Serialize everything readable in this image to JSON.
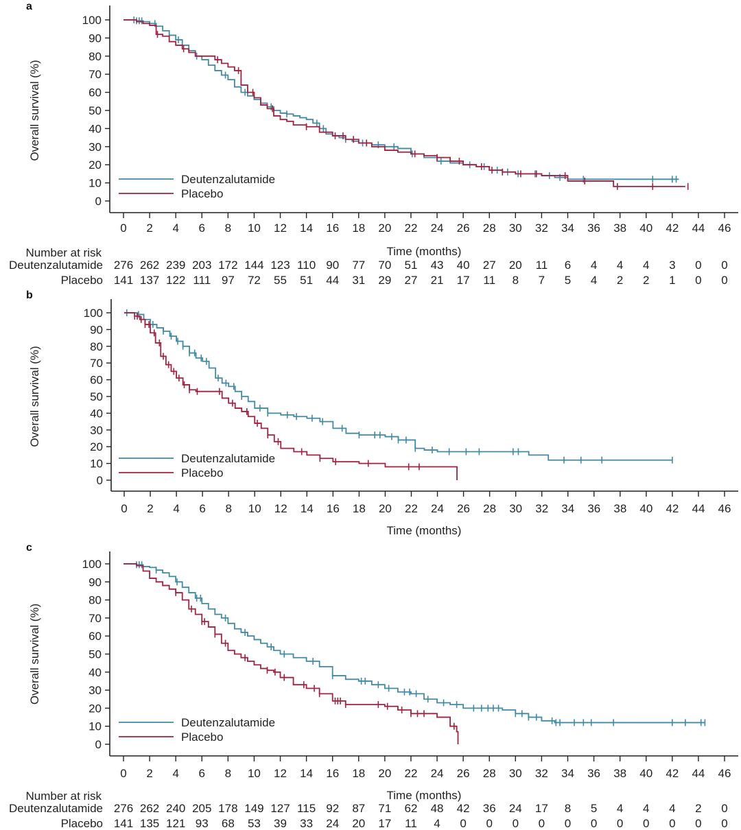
{
  "colors": {
    "treatment": "#3f8aa6",
    "placebo": "#a3213f",
    "axis": "#222222"
  },
  "chart_data": [
    {
      "type": "line",
      "panel": "a",
      "xlabel": "Time (months)",
      "ylabel": "Overall survival (%)",
      "xlim": [
        0,
        46
      ],
      "ylim": [
        0,
        100
      ],
      "xticks": [
        0,
        2,
        4,
        6,
        8,
        10,
        12,
        14,
        16,
        18,
        20,
        22,
        24,
        26,
        28,
        30,
        32,
        34,
        36,
        38,
        40,
        42,
        44,
        46
      ],
      "yticks": [
        0,
        10,
        20,
        30,
        40,
        50,
        60,
        70,
        80,
        90,
        100
      ],
      "legend": [
        "Deutenzalutamide",
        "Placebo"
      ],
      "legend_position": "bottom-left",
      "series": [
        {
          "name": "Deutenzalutamide",
          "color_key": "treatment",
          "x": [
            0,
            1,
            1.5,
            2,
            2.5,
            3,
            3.5,
            4,
            4.5,
            5,
            5.5,
            6,
            6.5,
            7,
            7.5,
            8,
            8.5,
            9,
            9.5,
            10,
            10.5,
            11,
            11.5,
            12,
            12.5,
            13,
            13.5,
            14,
            14.5,
            15,
            15.5,
            16,
            16.5,
            17,
            17.5,
            18,
            19,
            20,
            21,
            22,
            23,
            24,
            25,
            26,
            27,
            28,
            29,
            30,
            31,
            32,
            33,
            34,
            35,
            36,
            38,
            40,
            42,
            42.5
          ],
          "y": [
            100,
            99.5,
            99,
            98,
            96.5,
            94,
            91.5,
            89,
            86,
            83,
            80,
            78,
            75,
            72,
            69.5,
            67,
            63,
            60,
            58,
            56,
            54,
            52,
            50,
            48.5,
            48,
            47,
            46,
            45,
            43,
            40,
            37,
            36,
            35,
            34,
            33,
            32,
            31,
            30,
            29,
            26,
            24,
            22,
            21,
            20,
            19,
            17,
            16,
            15,
            15,
            14,
            13,
            12,
            12,
            12,
            12,
            12,
            12,
            12
          ],
          "censor_x": [
            0.8,
            1.0,
            1.2,
            1.4,
            2.4,
            4.2,
            5.6,
            7.8,
            9.3,
            11.3,
            12.5,
            14.8,
            15.3,
            17.0,
            18.3,
            19.5,
            20.7,
            22.1,
            24.3,
            26.5,
            27.6,
            28.6,
            29.4,
            30.2,
            31.5,
            32.6,
            33.4,
            35.2,
            40.5,
            42.0,
            42.3
          ]
        },
        {
          "name": "Placebo",
          "color_key": "placebo",
          "x": [
            0,
            1,
            1.5,
            2,
            2.5,
            3,
            3.5,
            4,
            4.5,
            5,
            5.5,
            6,
            6.5,
            7,
            7.5,
            8,
            8.5,
            9,
            9.5,
            10,
            10.5,
            11,
            11.5,
            12,
            12.5,
            13,
            14,
            15,
            16,
            17,
            18,
            19,
            20,
            21,
            22,
            23,
            24,
            25,
            26,
            27,
            28,
            29,
            30,
            31,
            32,
            33,
            34,
            36,
            37.5,
            40,
            43
          ],
          "y": [
            100,
            99,
            98,
            97,
            92,
            91,
            88,
            86,
            84,
            82,
            80,
            80,
            80,
            78,
            76,
            74,
            72,
            64,
            60,
            57,
            53,
            51,
            47,
            45,
            44,
            42,
            41,
            38,
            36,
            34,
            32,
            30,
            28,
            27,
            26,
            25,
            24,
            22,
            20,
            19,
            17,
            16,
            15,
            15,
            14,
            14,
            11,
            11,
            8,
            8,
            8
          ],
          "censor_x": [
            2.6,
            4.6,
            7.2,
            8.8,
            9.9,
            11.4,
            14.0,
            16.2,
            16.8,
            17.6,
            18.6,
            22.3,
            24.0,
            25.7,
            27.4,
            28.2,
            29.0,
            30.4,
            31.6,
            33.8,
            35.3,
            37.8,
            40.5,
            43.2
          ]
        }
      ],
      "number_at_risk": {
        "title": "Number at risk",
        "times": [
          0,
          2,
          4,
          6,
          8,
          10,
          12,
          14,
          16,
          18,
          20,
          22,
          24,
          26,
          28,
          30,
          32,
          34,
          36,
          38,
          40,
          42,
          44,
          46
        ],
        "rows": [
          {
            "label": "Deutenzalutamide",
            "values": [
              276,
              262,
              239,
              203,
              172,
              144,
              123,
              110,
              90,
              77,
              70,
              51,
              43,
              40,
              27,
              20,
              11,
              6,
              4,
              4,
              4,
              3,
              0,
              0
            ]
          },
          {
            "label": "Placebo",
            "values": [
              141,
              137,
              122,
              111,
              97,
              72,
              55,
              51,
              44,
              31,
              29,
              27,
              21,
              17,
              11,
              8,
              7,
              5,
              4,
              2,
              2,
              1,
              0,
              0
            ]
          }
        ]
      }
    },
    {
      "type": "line",
      "panel": "b",
      "xlabel": "Time (months)",
      "ylabel": "Overall survival (%)",
      "xlim": [
        0,
        46
      ],
      "ylim": [
        0,
        100
      ],
      "xticks": [
        0,
        2,
        4,
        6,
        8,
        10,
        12,
        14,
        16,
        18,
        20,
        22,
        24,
        26,
        28,
        30,
        32,
        34,
        36,
        38,
        40,
        42,
        44,
        46
      ],
      "yticks": [
        0,
        10,
        20,
        30,
        40,
        50,
        60,
        70,
        80,
        90,
        100
      ],
      "legend": [
        "Deutenzalutamide",
        "Placebo"
      ],
      "legend_position": "bottom-left",
      "series": [
        {
          "name": "Deutenzalutamide",
          "color_key": "treatment",
          "x": [
            0,
            1,
            1.5,
            2,
            2.5,
            3,
            3.5,
            4,
            4.5,
            5,
            5.5,
            6,
            6.5,
            7,
            7.5,
            8,
            8.5,
            9,
            9.5,
            10,
            11,
            12,
            13,
            14,
            15,
            16,
            17,
            18,
            19,
            20,
            21,
            22,
            22.3,
            23,
            24,
            30,
            31,
            32.5,
            34,
            42
          ],
          "y": [
            100,
            99,
            96,
            93,
            91,
            89,
            86,
            83,
            80,
            76,
            73,
            71,
            67,
            61,
            58,
            56,
            53,
            50,
            47,
            43,
            40,
            39,
            38,
            37,
            35,
            31,
            28,
            27,
            27,
            26,
            24,
            24,
            19,
            18,
            17,
            17,
            15,
            12,
            12,
            12
          ],
          "censor_x": [
            0.2,
            1.1,
            2.2,
            3.0,
            3.6,
            4.1,
            4.5,
            5.0,
            5.4,
            5.9,
            6.3,
            7.2,
            7.8,
            8.4,
            9.0,
            10.4,
            11.0,
            12.5,
            13.2,
            14.4,
            15.2,
            16.7,
            18.0,
            19.2,
            19.6,
            20.5,
            21.0,
            21.6,
            22.3,
            23.6,
            24.9,
            26.2,
            27.2,
            29.8,
            30.2,
            33.7,
            35.0,
            36.6,
            42.0
          ],
          "last_x": 42
        },
        {
          "name": "Placebo",
          "color_key": "placebo",
          "x": [
            0,
            0.8,
            1.2,
            1.6,
            2,
            2.4,
            2.8,
            3.2,
            3.6,
            4,
            4.5,
            5,
            5.5,
            6,
            7,
            7.5,
            8,
            8.5,
            9,
            9.5,
            10,
            10.5,
            11,
            11.5,
            12,
            13,
            14,
            15,
            16,
            18,
            20,
            22,
            23,
            25.5
          ],
          "y": [
            100,
            98,
            96,
            93,
            88,
            82,
            74,
            69,
            65,
            61,
            57,
            54,
            53,
            53,
            53,
            49,
            46,
            43,
            41,
            38,
            34,
            31,
            27,
            23,
            19,
            17,
            15,
            13,
            11,
            10,
            8,
            8,
            8,
            8
          ],
          "censor_x": [
            0.8,
            1.0,
            1.3,
            1.6,
            1.9,
            2.3,
            2.7,
            3.0,
            3.4,
            3.8,
            4.2,
            4.6,
            5.0,
            5.6,
            7.3,
            8.3,
            9.4,
            10.2,
            11.0,
            11.8,
            13.6,
            15.0,
            16.2,
            18.7,
            21.8,
            22.6
          ],
          "last_x": 25.5,
          "drop_to": 0
        }
      ]
    },
    {
      "type": "line",
      "panel": "c",
      "xlabel": "Time (months)",
      "ylabel": "Overall survival (%)",
      "xlim": [
        0,
        46
      ],
      "ylim": [
        0,
        100
      ],
      "xticks": [
        0,
        2,
        4,
        6,
        8,
        10,
        12,
        14,
        16,
        18,
        20,
        22,
        24,
        26,
        28,
        30,
        32,
        34,
        36,
        38,
        40,
        42,
        44,
        46
      ],
      "yticks": [
        0,
        10,
        20,
        30,
        40,
        50,
        60,
        70,
        80,
        90,
        100
      ],
      "legend": [
        "Deutenzalutamide",
        "Placebo"
      ],
      "legend_position": "bottom-left",
      "series": [
        {
          "name": "Deutenzalutamide",
          "color_key": "treatment",
          "x": [
            0,
            1,
            1.5,
            2,
            2.5,
            3,
            3.5,
            4,
            4.5,
            5,
            5.5,
            6,
            6.5,
            7,
            7.5,
            8,
            8.5,
            9,
            9.5,
            10,
            10.5,
            11,
            11.5,
            12,
            13,
            14,
            15,
            16,
            17,
            18,
            19,
            20,
            21,
            22,
            23,
            24,
            25,
            26,
            27,
            28,
            29,
            30,
            31,
            32,
            33,
            34,
            36,
            40,
            44.5
          ],
          "y": [
            100,
            99.5,
            98.5,
            98,
            96.5,
            95,
            93,
            90,
            87,
            84,
            81,
            78,
            75,
            72,
            70,
            67,
            64,
            62,
            60,
            58,
            56,
            54,
            52,
            50,
            48,
            46,
            43,
            38,
            36,
            35,
            33,
            31,
            29,
            28,
            25,
            23,
            22,
            20,
            20,
            20,
            19,
            17,
            15,
            13,
            12,
            12,
            12,
            12,
            12
          ],
          "censor_x": [
            1.0,
            1.2,
            1.4,
            2.5,
            4.1,
            5.6,
            5.9,
            7.8,
            9.3,
            11.3,
            12.3,
            14.5,
            16.0,
            18.2,
            18.5,
            19.5,
            20.3,
            21.5,
            21.9,
            22.4,
            23.3,
            24.5,
            25.5,
            26.8,
            27.4,
            27.9,
            28.3,
            28.7,
            30.0,
            30.5,
            31.0,
            31.6,
            32.8,
            33.1,
            33.4,
            34.5,
            35.2,
            35.8,
            37.5,
            42.0,
            43.0,
            44.2,
            44.5
          ]
        },
        {
          "name": "Placebo",
          "color_key": "placebo",
          "x": [
            0,
            1,
            1.5,
            2,
            2.5,
            3,
            3.5,
            4,
            4.5,
            5,
            5.5,
            6,
            6.5,
            7,
            7.5,
            8,
            8.5,
            9,
            9.5,
            10,
            10.5,
            11,
            11.5,
            12,
            13,
            14,
            15,
            16,
            17,
            18,
            20,
            21,
            22,
            24,
            25,
            25.5
          ],
          "y": [
            100,
            99,
            96,
            92,
            90,
            88,
            86,
            84,
            80,
            75,
            72,
            68,
            65,
            61,
            56,
            52,
            50,
            48,
            46,
            44,
            42,
            41,
            40,
            37,
            33,
            31,
            28,
            24,
            22,
            22,
            21,
            19,
            17,
            15,
            10,
            7
          ],
          "censor_x": [
            4.0,
            5.2,
            6.0,
            6.2,
            7.0,
            7.8,
            9.3,
            11.0,
            11.6,
            12.3,
            13.8,
            14.6,
            15.0,
            16.2,
            16.4,
            16.6,
            17.0,
            19.5,
            20.2,
            21.3,
            22.0,
            22.5,
            23.0,
            25.3
          ],
          "last_x": 25.6,
          "drop_to": 0
        }
      ],
      "number_at_risk": {
        "title": "Number at risk",
        "times": [
          0,
          2,
          4,
          6,
          8,
          10,
          12,
          14,
          16,
          18,
          20,
          22,
          24,
          26,
          28,
          30,
          32,
          34,
          36,
          38,
          40,
          42,
          44,
          46
        ],
        "rows": [
          {
            "label": "Deutenzalutamide",
            "values": [
              276,
              262,
              240,
              205,
              178,
              149,
              127,
              115,
              92,
              87,
              71,
              62,
              48,
              42,
              36,
              24,
              17,
              8,
              5,
              4,
              4,
              4,
              2,
              0
            ]
          },
          {
            "label": "Placebo",
            "values": [
              141,
              135,
              121,
              93,
              68,
              53,
              39,
              33,
              24,
              20,
              17,
              11,
              4,
              0,
              0,
              0,
              0,
              0,
              0,
              0,
              0,
              0,
              0,
              0
            ]
          }
        ]
      }
    }
  ]
}
